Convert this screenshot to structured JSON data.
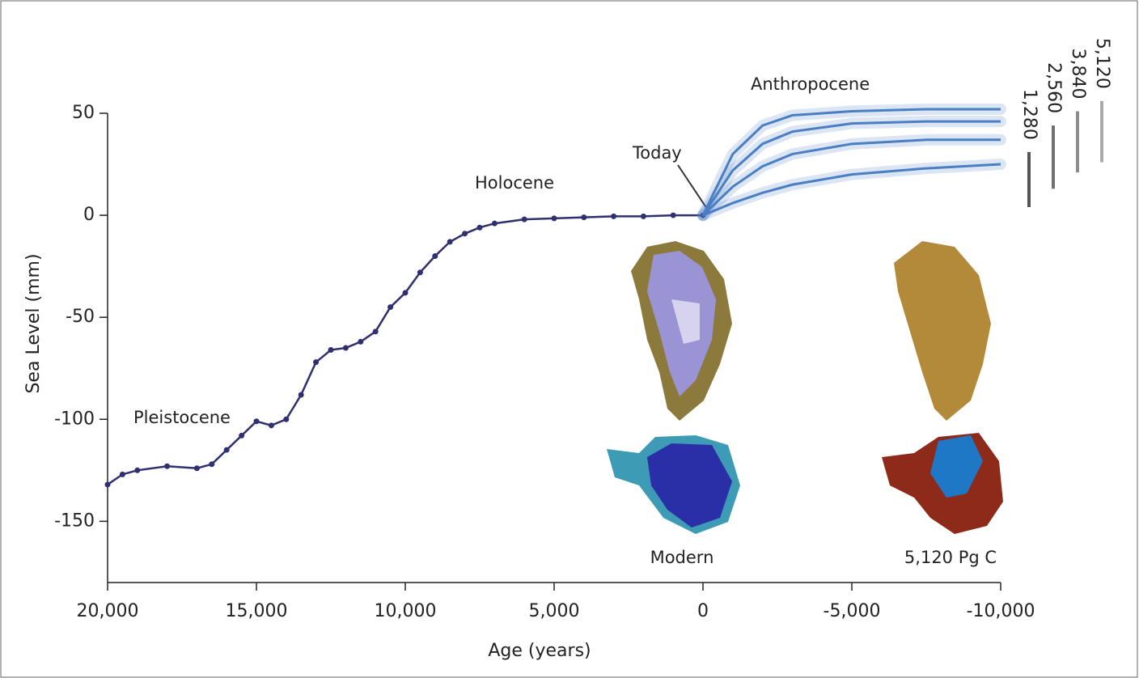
{
  "chart_data": {
    "type": "line",
    "x_label": "Age (years)",
    "y_label": "Sea Level (mm)",
    "xlim": [
      20000,
      -10000
    ],
    "ylim": [
      -180,
      50
    ],
    "xticks": [
      {
        "value": 20000,
        "label": "20,000"
      },
      {
        "value": 15000,
        "label": "15,000"
      },
      {
        "value": 10000,
        "label": "10,000"
      },
      {
        "value": 5000,
        "label": "5,000"
      },
      0,
      {
        "value": -5000,
        "label": "-5,000"
      },
      {
        "value": -10000,
        "label": "-10,000"
      }
    ],
    "yticks": [
      50,
      0,
      -50,
      -100,
      -150
    ],
    "series": [
      {
        "color": "#2e3070",
        "x": [
          20000,
          19500,
          19000,
          18000,
          17000,
          16500,
          16000,
          15500,
          15000,
          14500,
          14000,
          13500,
          13000,
          12500,
          12000,
          11500,
          11000,
          10500,
          10000,
          9500,
          9000,
          8500,
          8000,
          7500,
          7000,
          6000,
          5000,
          4000,
          3000,
          2000,
          1000,
          0
        ],
        "values": [
          -132,
          -127,
          -125,
          -123,
          -124,
          -122,
          -115,
          -108,
          -101,
          -103,
          -100,
          -88,
          -72,
          -66,
          -65,
          -62,
          -57,
          -45,
          -38,
          -28,
          -20,
          -13,
          -9,
          -6,
          -4,
          -2,
          -1.5,
          -1,
          -0.5,
          -0.5,
          0,
          0
        ]
      },
      {
        "name": "1,280",
        "color": "#4a7fc4",
        "range_color": "#555555",
        "range": [
          4,
          31
        ],
        "x": [
          0,
          -1000,
          -2000,
          -3000,
          -5000,
          -7500,
          -10000
        ],
        "values": [
          0,
          6,
          11,
          15,
          20,
          23,
          25
        ]
      },
      {
        "name": "2,560",
        "color": "#4a7fc4",
        "range_color": "#707070",
        "range": [
          13,
          44
        ],
        "x": [
          0,
          -1000,
          -2000,
          -3000,
          -5000,
          -7500,
          -10000
        ],
        "values": [
          0,
          14,
          24,
          30,
          35,
          37,
          37
        ]
      },
      {
        "name": "3,840",
        "color": "#4a7fc4",
        "range_color": "#8c8c8c",
        "range": [
          21,
          51
        ],
        "x": [
          0,
          -1000,
          -2000,
          -3000,
          -5000,
          -7500,
          -10000
        ],
        "values": [
          0,
          22,
          35,
          41,
          45,
          46,
          46
        ]
      },
      {
        "name": "5,120",
        "color": "#4a7fc4",
        "range_color": "#aaaaaa",
        "range": [
          26,
          56
        ],
        "x": [
          0,
          -1000,
          -2000,
          -3000,
          -5000,
          -7500,
          -10000
        ],
        "values": [
          0,
          30,
          44,
          49,
          51,
          52,
          52
        ]
      }
    ],
    "annotations": [
      "Pleistocene",
      "Holocene",
      "Today",
      "Anthropocene",
      "Modern",
      "5,120 Pg C"
    ]
  }
}
